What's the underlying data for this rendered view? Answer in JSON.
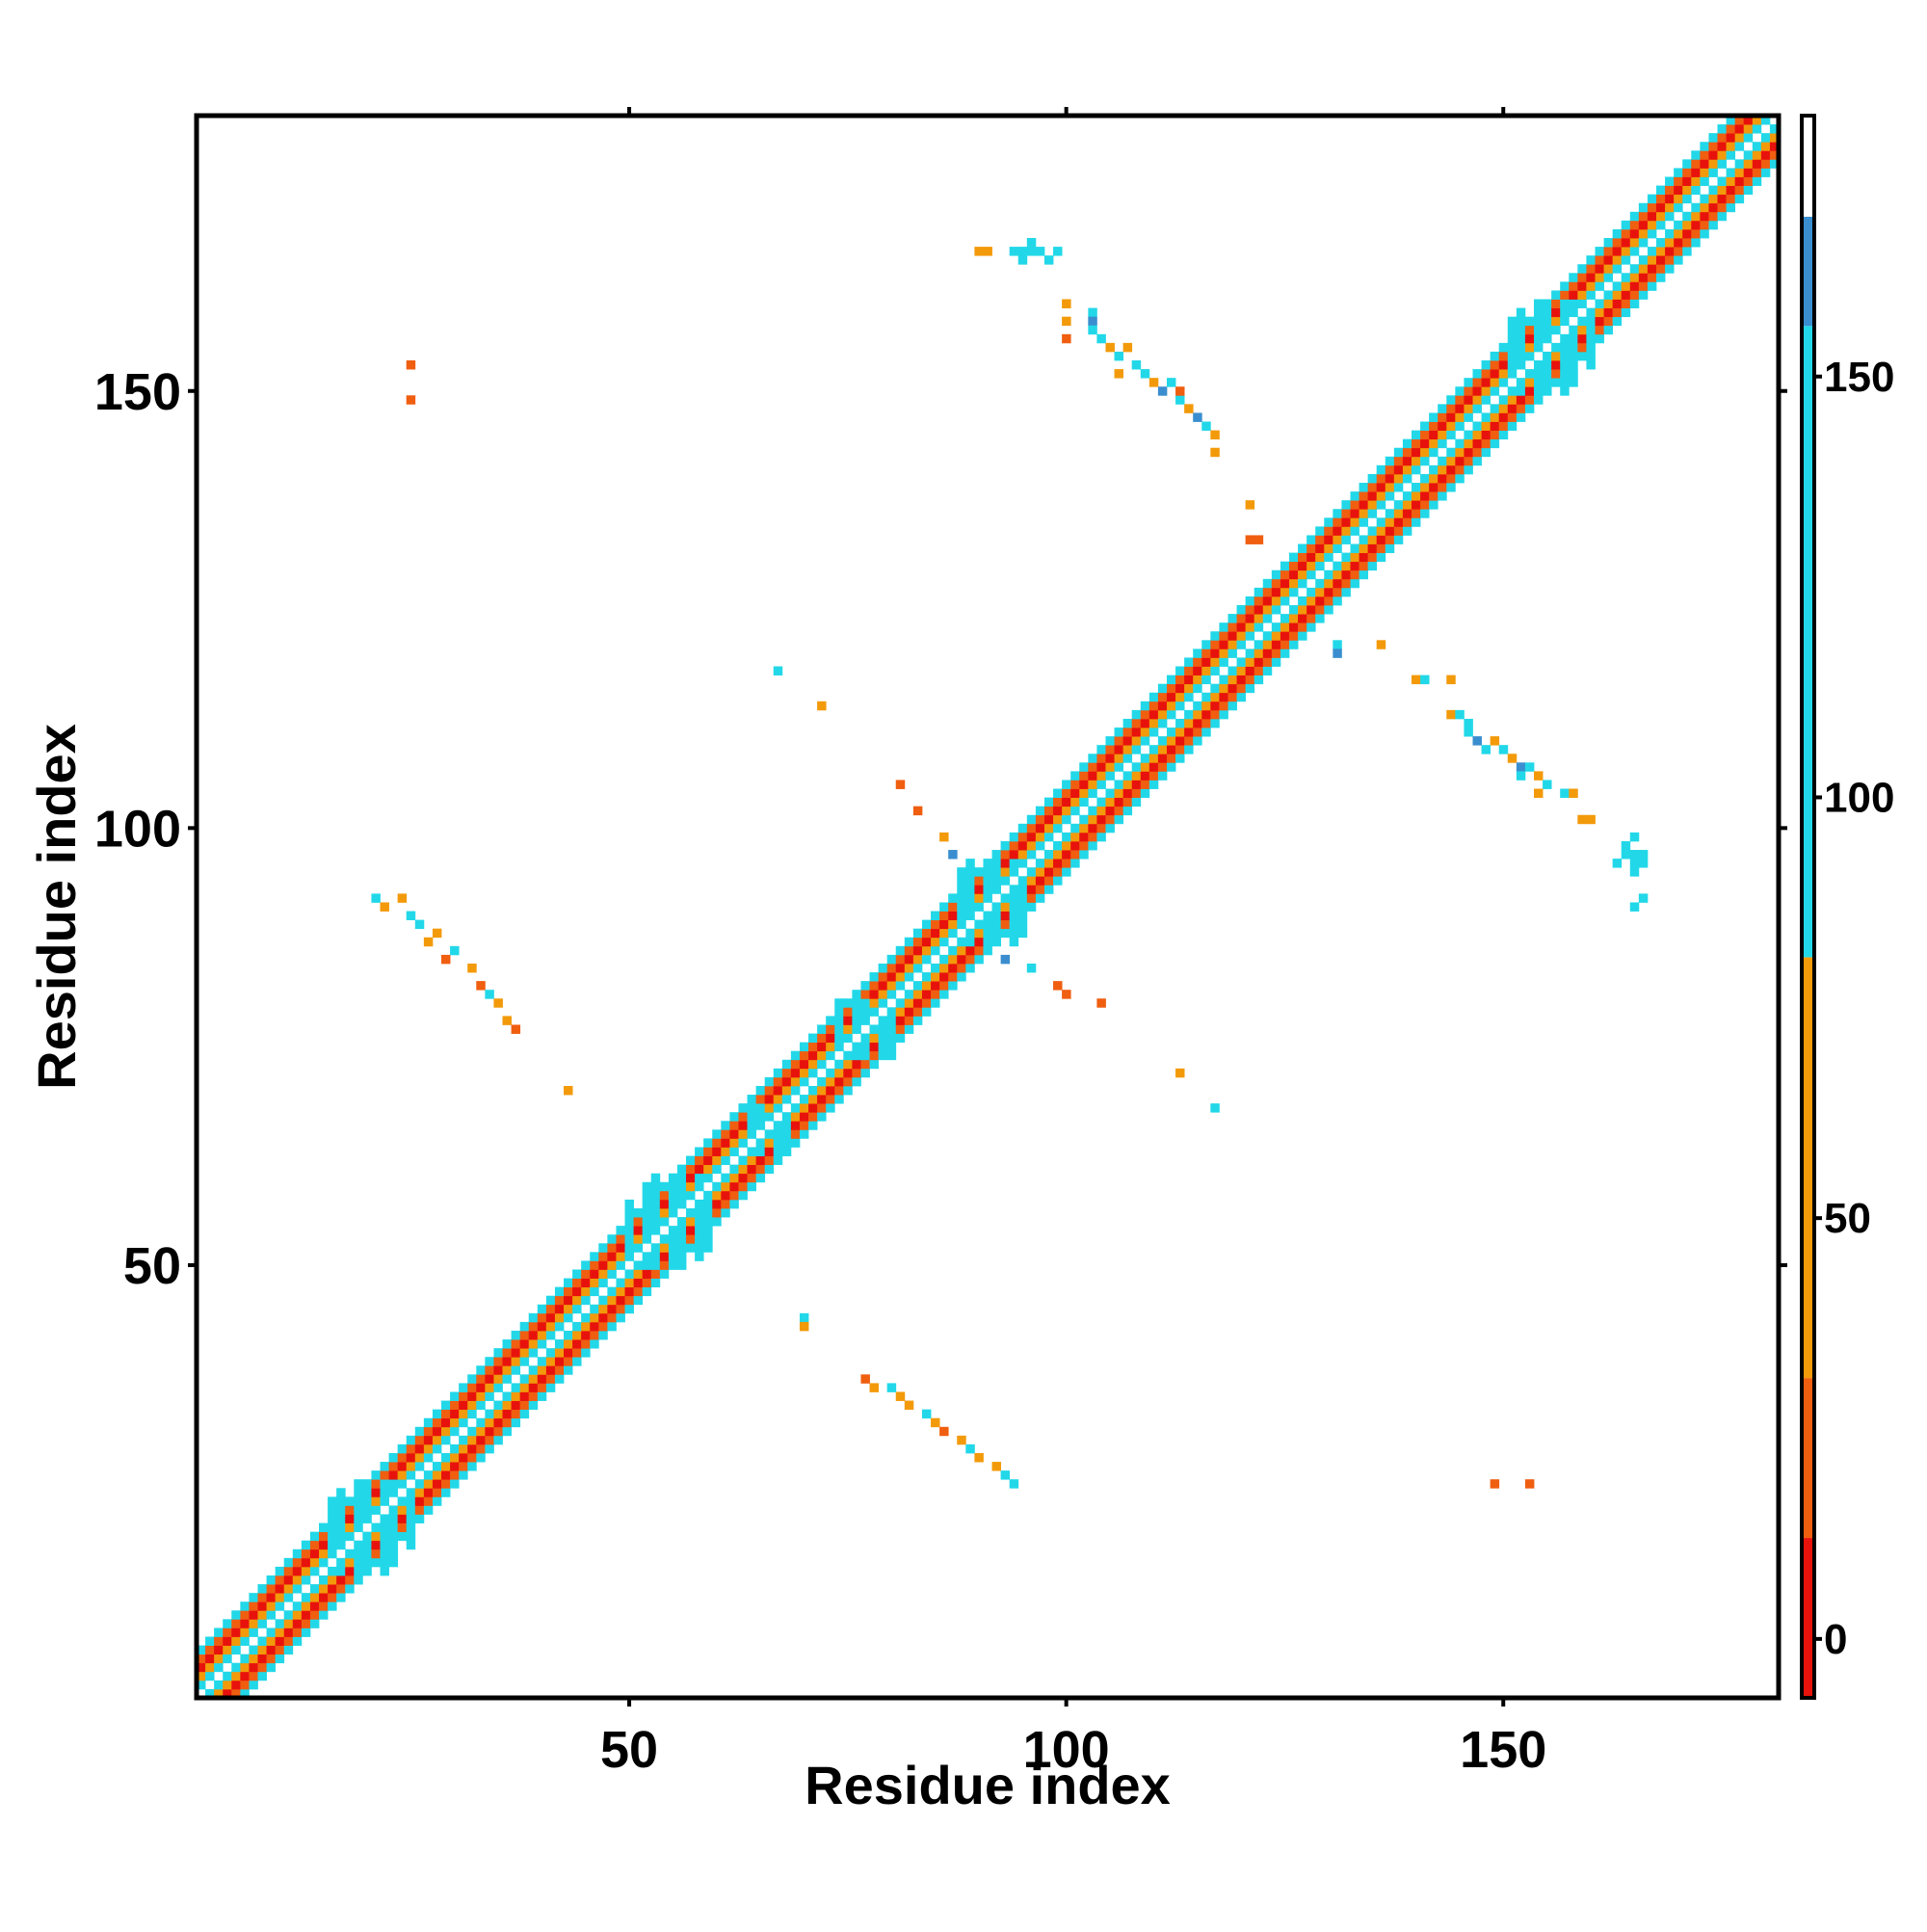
{
  "chart_data": {
    "type": "heatmap",
    "xlabel": "Residue index",
    "ylabel": "Residue index",
    "xlim": [
      0.5,
      181.5
    ],
    "ylim": [
      0.5,
      181.5
    ],
    "x_ticks": [
      50,
      100,
      150
    ],
    "y_ticks": [
      50,
      100,
      150
    ],
    "colorbar": {
      "range": [
        -7,
        181
      ],
      "ticks": [
        0,
        50,
        100,
        150
      ],
      "segments": [
        {
          "from": -7,
          "to": 12,
          "color": "#e8120c"
        },
        {
          "from": 12,
          "to": 31,
          "color": "#f05e10"
        },
        {
          "from": 31,
          "to": 81,
          "color": "#f39a0a"
        },
        {
          "from": 81,
          "to": 156,
          "color": "#22d8e8"
        },
        {
          "from": 156,
          "to": 169,
          "color": "#3a8ecf"
        },
        {
          "from": 169,
          "to": 181,
          "color": "#ffffff"
        }
      ]
    },
    "palette": {
      "R": "#e8120c",
      "O": "#f05e10",
      "A": "#f39a0a",
      "C": "#22d8e8",
      "B": "#3a8ecf"
    },
    "diagonal_band": {
      "pattern_by_offset": {
        "1": "C",
        "2": "A",
        "3": "R",
        "4": "O",
        "5": "C"
      },
      "cyan_blocks": [
        {
          "from": 15,
          "to": 25
        },
        {
          "from": 50,
          "to": 60
        },
        {
          "from": 63,
          "to": 68
        },
        {
          "from": 74,
          "to": 80
        },
        {
          "from": 87,
          "to": 96
        },
        {
          "from": 150,
          "to": 160
        }
      ]
    },
    "off_diagonal": [
      [
        25,
        153,
        "O"
      ],
      [
        25,
        149,
        "O"
      ],
      [
        21,
        92,
        "C"
      ],
      [
        22,
        91,
        "A"
      ],
      [
        24,
        92,
        "A"
      ],
      [
        25,
        90,
        "C"
      ],
      [
        26,
        89,
        "C"
      ],
      [
        27,
        87,
        "A"
      ],
      [
        28,
        88,
        "A"
      ],
      [
        29,
        85,
        "O"
      ],
      [
        30,
        86,
        "C"
      ],
      [
        32,
        84,
        "A"
      ],
      [
        33,
        82,
        "O"
      ],
      [
        34,
        81,
        "C"
      ],
      [
        35,
        80,
        "A"
      ],
      [
        36,
        78,
        "A"
      ],
      [
        37,
        77,
        "O"
      ],
      [
        43,
        70,
        "A"
      ],
      [
        67,
        118,
        "C"
      ],
      [
        72,
        114,
        "A"
      ],
      [
        70,
        44,
        "C"
      ],
      [
        70,
        43,
        "A"
      ],
      [
        77,
        37,
        "O"
      ],
      [
        78,
        36,
        "A"
      ],
      [
        80,
        36,
        "C"
      ],
      [
        81,
        35,
        "A"
      ],
      [
        82,
        34,
        "A"
      ],
      [
        84,
        33,
        "C"
      ],
      [
        85,
        32,
        "A"
      ],
      [
        86,
        31,
        "O"
      ],
      [
        88,
        30,
        "A"
      ],
      [
        89,
        29,
        "C"
      ],
      [
        90,
        28,
        "A"
      ],
      [
        92,
        27,
        "A"
      ],
      [
        93,
        26,
        "C"
      ],
      [
        94,
        25,
        "C"
      ],
      [
        81,
        105,
        "O"
      ],
      [
        83,
        102,
        "O"
      ],
      [
        86,
        99,
        "A"
      ],
      [
        87,
        97,
        "B"
      ],
      [
        93,
        85,
        "B"
      ],
      [
        96,
        84,
        "C"
      ],
      [
        99,
        82,
        "O"
      ],
      [
        100,
        81,
        "O"
      ],
      [
        104,
        80,
        "O"
      ],
      [
        113,
        72,
        "A"
      ],
      [
        117,
        68,
        "C"
      ],
      [
        90,
        166,
        "A"
      ],
      [
        91,
        166,
        "A"
      ],
      [
        94,
        166,
        "C"
      ],
      [
        95,
        166,
        "C"
      ],
      [
        96,
        166,
        "C"
      ],
      [
        97,
        166,
        "C"
      ],
      [
        98,
        165,
        "C"
      ],
      [
        99,
        166,
        "C"
      ],
      [
        95,
        165,
        "C"
      ],
      [
        96,
        167,
        "C"
      ],
      [
        100,
        160,
        "A"
      ],
      [
        100,
        158,
        "A"
      ],
      [
        100,
        156,
        "O"
      ],
      [
        103,
        159,
        "C"
      ],
      [
        103,
        158,
        "B"
      ],
      [
        103,
        157,
        "C"
      ],
      [
        104,
        156,
        "C"
      ],
      [
        105,
        155,
        "A"
      ],
      [
        106,
        154,
        "C"
      ],
      [
        107,
        155,
        "A"
      ],
      [
        106,
        152,
        "A"
      ],
      [
        108,
        153,
        "C"
      ],
      [
        109,
        152,
        "C"
      ],
      [
        110,
        151,
        "A"
      ],
      [
        111,
        150,
        "B"
      ],
      [
        112,
        151,
        "C"
      ],
      [
        113,
        149,
        "C"
      ],
      [
        113,
        150,
        "O"
      ],
      [
        114,
        148,
        "A"
      ],
      [
        115,
        147,
        "B"
      ],
      [
        116,
        146,
        "C"
      ],
      [
        117,
        145,
        "A"
      ],
      [
        117,
        143,
        "A"
      ],
      [
        121,
        137,
        "A"
      ],
      [
        122,
        133,
        "O"
      ],
      [
        121,
        133,
        "O"
      ],
      [
        131,
        121,
        "C"
      ],
      [
        131,
        120,
        "B"
      ],
      [
        136,
        121,
        "A"
      ],
      [
        140,
        117,
        "A"
      ],
      [
        141,
        117,
        "C"
      ],
      [
        144,
        117,
        "A"
      ],
      [
        144,
        113,
        "A"
      ],
      [
        145,
        113,
        "C"
      ],
      [
        146,
        112,
        "C"
      ],
      [
        146,
        111,
        "C"
      ],
      [
        147,
        110,
        "B"
      ],
      [
        148,
        109,
        "C"
      ],
      [
        149,
        110,
        "A"
      ],
      [
        150,
        109,
        "C"
      ],
      [
        151,
        108,
        "A"
      ],
      [
        152,
        107,
        "B"
      ],
      [
        153,
        107,
        "C"
      ],
      [
        152,
        106,
        "C"
      ],
      [
        154,
        106,
        "A"
      ],
      [
        155,
        105,
        "C"
      ],
      [
        154,
        104,
        "A"
      ],
      [
        157,
        104,
        "C"
      ],
      [
        158,
        104,
        "A"
      ],
      [
        159,
        101,
        "A"
      ],
      [
        160,
        101,
        "A"
      ],
      [
        149,
        25,
        "O"
      ],
      [
        153,
        25,
        "O"
      ],
      [
        164,
        97,
        "C"
      ],
      [
        165,
        96,
        "C"
      ],
      [
        166,
        97,
        "C"
      ],
      [
        164,
        98,
        "C"
      ],
      [
        165,
        99,
        "C"
      ],
      [
        166,
        96,
        "C"
      ],
      [
        165,
        95,
        "C"
      ],
      [
        166,
        92,
        "C"
      ],
      [
        165,
        91,
        "C"
      ],
      [
        163,
        96,
        "C"
      ],
      [
        165,
        97,
        "C"
      ]
    ]
  }
}
